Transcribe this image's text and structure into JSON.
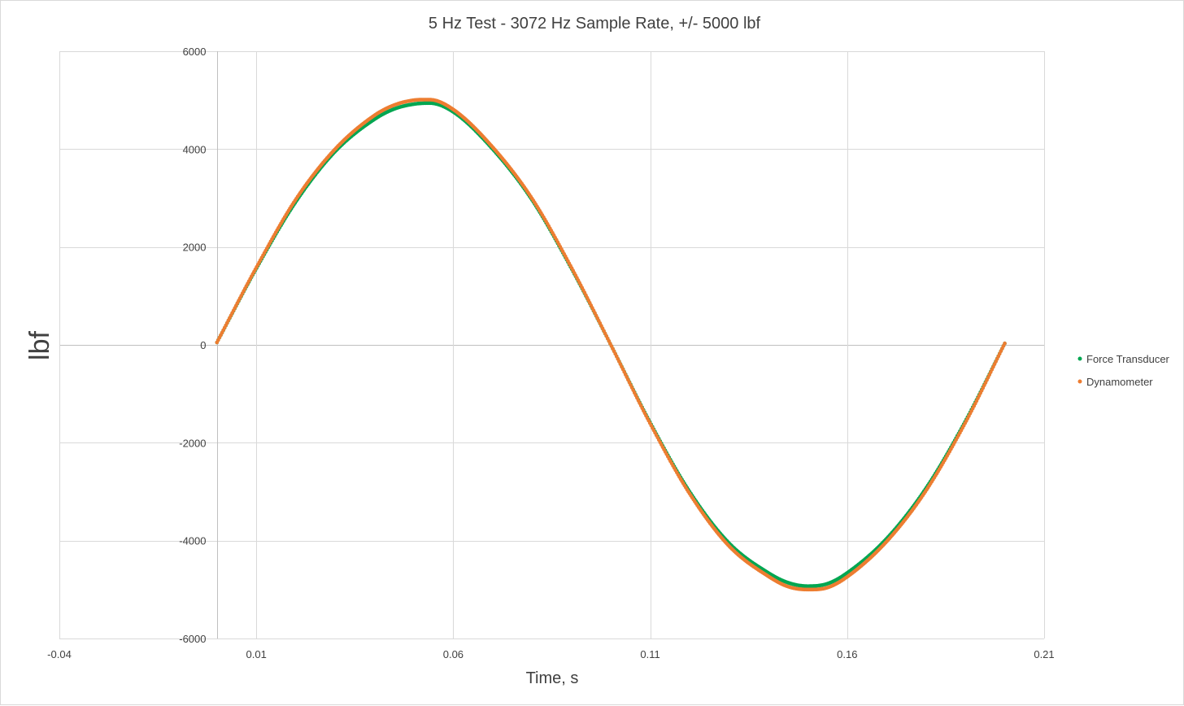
{
  "chart_data": {
    "type": "scatter",
    "title": "5 Hz Test - 3072 Hz Sample Rate, +/- 5000 lbf",
    "xlabel": "Time, s",
    "ylabel": "lbf",
    "xlim": [
      -0.04,
      0.21
    ],
    "ylim": [
      -6000,
      6000
    ],
    "x_ticks": [
      -0.04,
      0.01,
      0.06,
      0.11,
      0.16,
      0.21
    ],
    "x_tick_labels": [
      "-0.04",
      "0.01",
      "0.06",
      "0.11",
      "0.16",
      "0.21"
    ],
    "y_ticks": [
      6000,
      4000,
      2000,
      0,
      -2000,
      -4000,
      -6000
    ],
    "y_tick_labels": [
      "6000",
      "4000",
      "2000",
      "0",
      "-2000",
      "-4000",
      "-6000"
    ],
    "grid": true,
    "legend_position": "right",
    "series": [
      {
        "name": "Force Transducer",
        "color": "#00a651",
        "x": [
          0.0,
          0.01,
          0.02,
          0.03,
          0.04,
          0.045,
          0.05,
          0.054,
          0.06,
          0.07,
          0.08,
          0.09,
          0.1,
          0.11,
          0.12,
          0.13,
          0.14,
          0.145,
          0.15,
          0.155,
          0.16,
          0.17,
          0.18,
          0.19,
          0.2
        ],
        "y": [
          50,
          1560,
          2920,
          3950,
          4610,
          4820,
          4920,
          4940,
          4760,
          4000,
          2960,
          1560,
          0,
          -1590,
          -3000,
          -4050,
          -4660,
          -4860,
          -4930,
          -4880,
          -4660,
          -3960,
          -2930,
          -1560,
          30
        ]
      },
      {
        "name": "Dynamometer",
        "color": "#ed7d31",
        "x": [
          0.0,
          0.01,
          0.02,
          0.03,
          0.04,
          0.045,
          0.05,
          0.054,
          0.06,
          0.07,
          0.08,
          0.09,
          0.1,
          0.11,
          0.12,
          0.13,
          0.14,
          0.145,
          0.15,
          0.155,
          0.16,
          0.17,
          0.18,
          0.19,
          0.2
        ],
        "y": [
          50,
          1580,
          2970,
          4000,
          4690,
          4900,
          5000,
          5010,
          4810,
          4040,
          2990,
          1580,
          0,
          -1610,
          -3040,
          -4110,
          -4730,
          -4940,
          -5000,
          -4960,
          -4740,
          -4020,
          -2980,
          -1590,
          30
        ]
      }
    ]
  }
}
